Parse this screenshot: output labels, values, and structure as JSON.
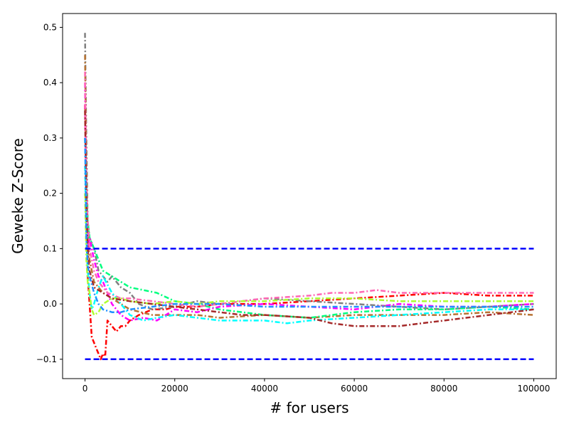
{
  "chart_data": {
    "type": "line",
    "title": "",
    "xlabel": "# for users",
    "ylabel": "Geweke Z-Score",
    "xlim": [
      -5000,
      105000
    ],
    "ylim": [
      -0.135,
      0.525
    ],
    "xticks": [
      0,
      20000,
      40000,
      60000,
      80000,
      100000
    ],
    "xtick_labels": [
      "0",
      "20000",
      "40000",
      "60000",
      "80000",
      "100000"
    ],
    "yticks": [
      -0.1,
      0.0,
      0.1,
      0.2,
      0.3,
      0.4,
      0.5
    ],
    "ytick_labels": [
      "−0.1",
      "0.0",
      "0.1",
      "0.2",
      "0.3",
      "0.4",
      "0.5"
    ],
    "grid": false,
    "reference_lines": [
      {
        "y": 0.1,
        "x_range": [
          0,
          100000
        ],
        "color": "#0000ff",
        "style": "dashed"
      },
      {
        "y": -0.1,
        "x_range": [
          0,
          100000
        ],
        "color": "#0000ff",
        "style": "dashed"
      }
    ],
    "series": [
      {
        "color": "#ff0000",
        "style": "dashdot",
        "x": [
          0,
          300,
          600,
          1000,
          1500,
          2000,
          2500,
          3000,
          3500,
          4000,
          4500,
          5000,
          6000,
          7000,
          8000,
          9000,
          10000,
          12000,
          15000,
          18000,
          20000,
          25000,
          30000,
          40000,
          50000,
          60000,
          70000,
          80000,
          90000,
          100000
        ],
        "y": [
          0.36,
          0.2,
          0.05,
          0.0,
          -0.06,
          -0.07,
          -0.08,
          -0.09,
          -0.1,
          -0.09,
          -0.095,
          -0.03,
          -0.04,
          -0.05,
          -0.04,
          -0.04,
          -0.03,
          -0.02,
          -0.01,
          -0.01,
          -0.005,
          -0.005,
          0.0,
          0.0,
          0.005,
          0.01,
          0.015,
          0.02,
          0.015,
          0.015
        ]
      },
      {
        "color": "#808080",
        "style": "dashdot",
        "x": [
          0,
          300,
          600,
          1000,
          2000,
          3000,
          4000,
          5000,
          6000,
          8000,
          10000,
          12000,
          15000,
          20000,
          25000,
          30000,
          40000,
          50000,
          60000,
          70000,
          80000,
          90000,
          100000
        ],
        "y": [
          0.49,
          0.3,
          0.15,
          0.12,
          0.1,
          0.06,
          0.05,
          0.04,
          0.05,
          0.03,
          0.02,
          0.0,
          -0.01,
          -0.005,
          0.005,
          0.0,
          0.01,
          0.005,
          0.0,
          -0.005,
          -0.01,
          -0.005,
          0.0
        ]
      },
      {
        "color": "#b87333",
        "style": "dashdot",
        "x": [
          0,
          300,
          600,
          1000,
          2000,
          3000,
          4000,
          6000,
          8000,
          10000,
          15000,
          20000,
          25000,
          30000,
          40000,
          50000,
          60000,
          70000,
          80000,
          90000,
          100000
        ],
        "y": [
          0.45,
          0.25,
          0.12,
          0.08,
          0.04,
          0.03,
          0.02,
          0.01,
          0.0,
          -0.01,
          -0.02,
          -0.02,
          -0.02,
          -0.025,
          -0.02,
          -0.025,
          -0.02,
          -0.02,
          -0.02,
          -0.015,
          -0.02
        ]
      },
      {
        "color": "#00ff7f",
        "style": "dashdot",
        "x": [
          0,
          300,
          600,
          1000,
          2000,
          3000,
          4000,
          6000,
          8000,
          10000,
          13000,
          16000,
          20000,
          25000,
          30000,
          40000,
          50000,
          60000,
          70000,
          80000,
          90000,
          100000
        ],
        "y": [
          0.3,
          0.2,
          0.15,
          0.12,
          0.1,
          0.08,
          0.06,
          0.05,
          0.04,
          0.03,
          0.025,
          0.02,
          0.005,
          0.0,
          -0.01,
          -0.02,
          -0.025,
          -0.015,
          -0.01,
          -0.01,
          -0.005,
          -0.01
        ]
      },
      {
        "color": "#ff00ff",
        "style": "dashdot",
        "x": [
          0,
          300,
          600,
          1000,
          2000,
          3000,
          4000,
          6000,
          8000,
          10000,
          13000,
          16000,
          20000,
          25000,
          30000,
          40000,
          50000,
          60000,
          70000,
          80000,
          90000,
          100000
        ],
        "y": [
          0.4,
          0.15,
          0.1,
          0.12,
          0.08,
          0.05,
          0.04,
          0.0,
          -0.02,
          -0.03,
          -0.025,
          -0.03,
          -0.01,
          -0.015,
          -0.005,
          0.0,
          -0.005,
          -0.01,
          0.0,
          -0.005,
          -0.005,
          0.0
        ]
      },
      {
        "color": "#ff69b4",
        "style": "dashdot",
        "x": [
          0,
          300,
          600,
          1000,
          2000,
          3000,
          5000,
          8000,
          10000,
          15000,
          20000,
          25000,
          30000,
          35000,
          40000,
          50000,
          55000,
          60000,
          65000,
          70000,
          80000,
          90000,
          100000
        ],
        "y": [
          0.42,
          0.22,
          0.15,
          0.1,
          0.06,
          0.04,
          0.02,
          0.01,
          0.01,
          0.005,
          0.0,
          -0.005,
          0.0,
          0.005,
          0.01,
          0.015,
          0.02,
          0.02,
          0.025,
          0.02,
          0.02,
          0.02,
          0.02
        ]
      },
      {
        "color": "#00ffff",
        "style": "dashdot",
        "x": [
          0,
          300,
          600,
          1000,
          1500,
          2000,
          3000,
          4000,
          6000,
          8000,
          10000,
          13000,
          16000,
          20000,
          25000,
          30000,
          35000,
          40000,
          45000,
          50000,
          60000,
          70000,
          80000,
          90000,
          100000
        ],
        "y": [
          0.25,
          0.12,
          0.06,
          0.02,
          -0.01,
          0.0,
          0.03,
          0.05,
          0.02,
          0.0,
          -0.02,
          -0.03,
          -0.025,
          -0.02,
          -0.025,
          -0.03,
          -0.03,
          -0.03,
          -0.035,
          -0.03,
          -0.025,
          -0.02,
          -0.015,
          -0.01,
          -0.01
        ]
      },
      {
        "color": "#adff2f",
        "style": "dashdot",
        "x": [
          0,
          300,
          600,
          1000,
          1500,
          2000,
          3000,
          4000,
          6000,
          8000,
          10000,
          15000,
          20000,
          25000,
          30000,
          40000,
          50000,
          60000,
          70000,
          80000,
          90000,
          100000
        ],
        "y": [
          0.2,
          0.08,
          0.04,
          0.02,
          -0.01,
          -0.02,
          -0.015,
          0.0,
          0.01,
          0.01,
          0.005,
          0.0,
          0.005,
          0.0,
          0.005,
          0.005,
          0.01,
          0.01,
          0.005,
          0.005,
          0.005,
          0.005
        ]
      },
      {
        "color": "#a52a2a",
        "style": "dashdot",
        "x": [
          0,
          300,
          600,
          1000,
          2000,
          4000,
          6000,
          10000,
          15000,
          20000,
          25000,
          30000,
          35000,
          40000,
          50000,
          55000,
          60000,
          65000,
          70000,
          80000,
          90000,
          100000
        ],
        "y": [
          0.35,
          0.18,
          0.1,
          0.06,
          0.03,
          0.02,
          0.01,
          0.005,
          0.0,
          -0.005,
          -0.01,
          -0.015,
          -0.02,
          -0.02,
          -0.025,
          -0.035,
          -0.04,
          -0.04,
          -0.04,
          -0.03,
          -0.02,
          -0.01
        ]
      },
      {
        "color": "#1e90ff",
        "style": "dashdot",
        "x": [
          0,
          300,
          600,
          1000,
          2000,
          3000,
          4000,
          6000,
          8000,
          10000,
          15000,
          20000,
          25000,
          30000,
          40000,
          50000,
          60000,
          70000,
          80000,
          90000,
          100000
        ],
        "y": [
          0.3,
          0.12,
          0.07,
          0.05,
          0.02,
          0.0,
          -0.01,
          -0.015,
          -0.015,
          -0.01,
          -0.005,
          0.0,
          0.0,
          0.0,
          -0.005,
          -0.005,
          -0.005,
          -0.005,
          -0.005,
          -0.005,
          -0.005
        ]
      }
    ]
  }
}
